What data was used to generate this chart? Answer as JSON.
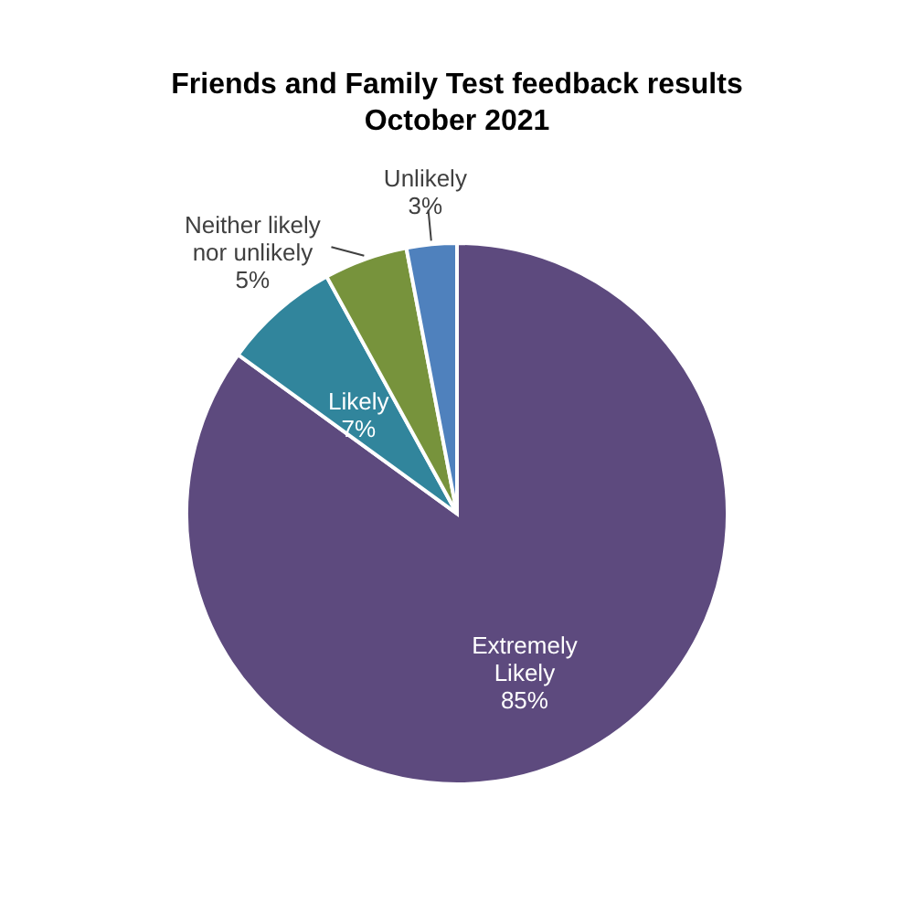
{
  "chart_data": {
    "type": "pie",
    "title": "Friends and Family Test feedback results\nOctober 2021",
    "categories": [
      "Extremely Likely",
      "Likely",
      "Neither likely nor unlikely",
      "Unlikely"
    ],
    "values": [
      85,
      7,
      5,
      3
    ],
    "colors": [
      "#5d4a7e",
      "#31859c",
      "#77933c",
      "#4f81bd"
    ],
    "value_labels": [
      "85%",
      "7%",
      "5%",
      "3%"
    ]
  }
}
